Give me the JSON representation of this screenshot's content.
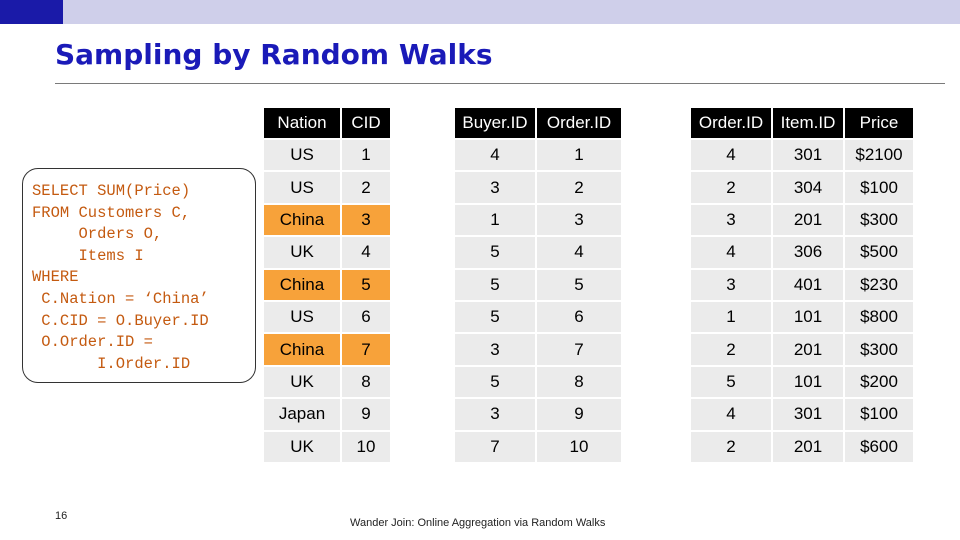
{
  "slide": {
    "title": "Sampling by Random Walks",
    "page_number": "16",
    "footer": "Wander Join: Online Aggregation via Random Walks",
    "colors": {
      "title": "#1a1ab8",
      "sql": "#c45a10",
      "highlight": "#f7a23a",
      "header": "#000000",
      "cell": "#ebebeb"
    }
  },
  "sql": {
    "lines": [
      "SELECT SUM(Price)",
      "FROM Customers C,",
      "     Orders O,",
      "     Items I",
      "WHERE",
      " C.Nation = ‘China’",
      " C.CID = O.Buyer.ID",
      " O.Order.ID =",
      "       I.Order.ID"
    ]
  },
  "tables": [
    {
      "headers": [
        "Nation",
        "CID"
      ],
      "rows": [
        [
          "US",
          "1"
        ],
        [
          "US",
          "2"
        ],
        [
          "China",
          "3"
        ],
        [
          "UK",
          "4"
        ],
        [
          "China",
          "5"
        ],
        [
          "US",
          "6"
        ],
        [
          "China",
          "7"
        ],
        [
          "UK",
          "8"
        ],
        [
          "Japan",
          "9"
        ],
        [
          "UK",
          "10"
        ]
      ],
      "highlighted_rows": [
        2,
        4,
        6
      ]
    },
    {
      "headers": [
        "Buyer.ID",
        "Order.ID"
      ],
      "rows": [
        [
          "4",
          "1"
        ],
        [
          "3",
          "2"
        ],
        [
          "1",
          "3"
        ],
        [
          "5",
          "4"
        ],
        [
          "5",
          "5"
        ],
        [
          "5",
          "6"
        ],
        [
          "3",
          "7"
        ],
        [
          "5",
          "8"
        ],
        [
          "3",
          "9"
        ],
        [
          "7",
          "10"
        ]
      ],
      "highlighted_rows": []
    },
    {
      "headers": [
        "Order.ID",
        "Item.ID",
        "Price"
      ],
      "rows": [
        [
          "4",
          "301",
          "$2100"
        ],
        [
          "2",
          "304",
          "$100"
        ],
        [
          "3",
          "201",
          "$300"
        ],
        [
          "4",
          "306",
          "$500"
        ],
        [
          "3",
          "401",
          "$230"
        ],
        [
          "1",
          "101",
          "$800"
        ],
        [
          "2",
          "201",
          "$300"
        ],
        [
          "5",
          "101",
          "$200"
        ],
        [
          "4",
          "301",
          "$100"
        ],
        [
          "2",
          "201",
          "$600"
        ]
      ],
      "highlighted_rows": []
    }
  ]
}
